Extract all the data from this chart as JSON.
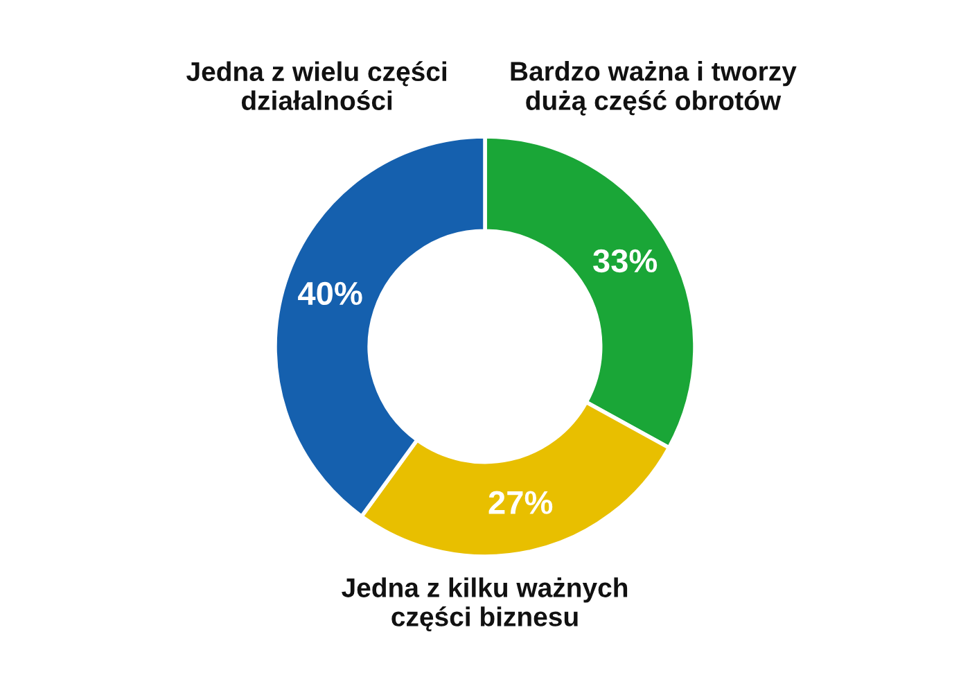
{
  "chart_data": {
    "type": "donut",
    "categories": [
      "Bardzo ważna i tworzy\ndużą część obrotów",
      "Jedna z kilku ważnych\nczęści biznesu",
      "Jedna z wielu części\ndziałalności"
    ],
    "values": [
      33,
      27,
      40
    ],
    "colors": [
      "#1aa637",
      "#e8bf00",
      "#1560ae"
    ],
    "value_labels": [
      "33%",
      "27%",
      "40%"
    ]
  }
}
